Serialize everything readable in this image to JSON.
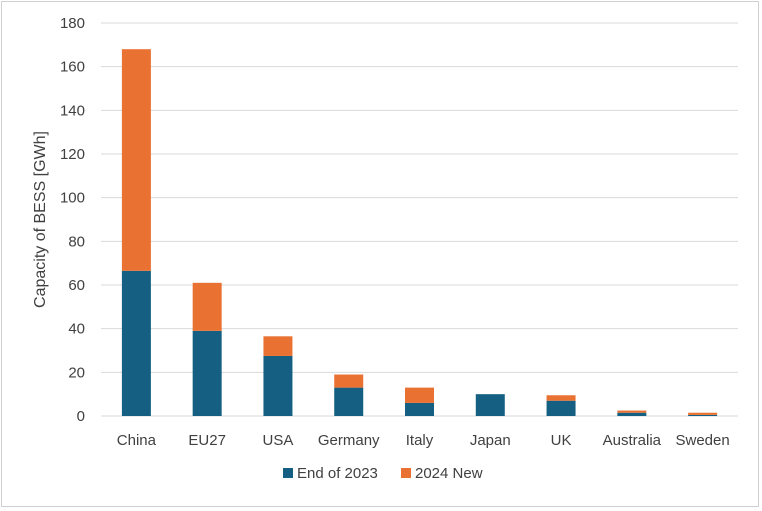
{
  "chart_data": {
    "type": "bar",
    "stacked": true,
    "title": "",
    "xlabel": "",
    "ylabel": "Capacity of BESS [GWh]",
    "ylim": [
      0,
      180
    ],
    "yticks": [
      0,
      20,
      40,
      60,
      80,
      100,
      120,
      140,
      160,
      180
    ],
    "grid": true,
    "legend_position": "bottom",
    "categories": [
      "China",
      "EU27",
      "USA",
      "Germany",
      "Italy",
      "Japan",
      "UK",
      "Australia",
      "Sweden"
    ],
    "series": [
      {
        "name": "End of 2023",
        "color": "#156082",
        "values": [
          66.5,
          39,
          27.5,
          13,
          6,
          10,
          7,
          1.5,
          0.5
        ]
      },
      {
        "name": "2024 New",
        "color": "#E97132",
        "values": [
          101.5,
          22,
          9,
          6,
          7,
          0,
          2.5,
          1,
          1
        ]
      }
    ]
  }
}
